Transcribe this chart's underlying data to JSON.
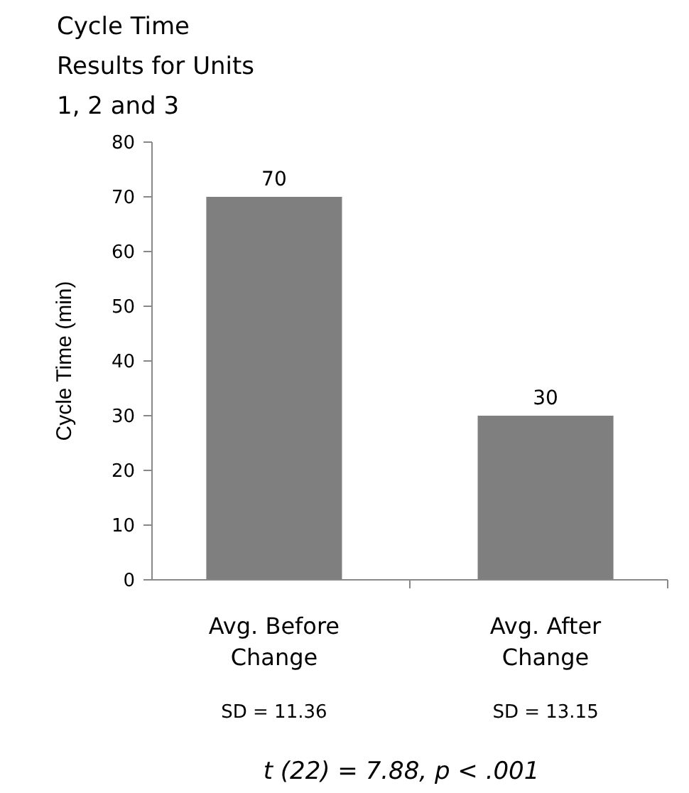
{
  "chart_data": {
    "type": "bar",
    "title": "Cycle Time Results for Units 1, 2 and 3",
    "ylabel": "Cycle Time (min)",
    "categories": [
      "Avg. Before Change",
      "Avg. After Change"
    ],
    "values": [
      70,
      30
    ],
    "color": "#7f7f7f",
    "ylim": [
      0,
      80
    ],
    "yticks": [
      0,
      10,
      20,
      30,
      40,
      50,
      60,
      70,
      80
    ],
    "data_labels": true,
    "annotations": [
      "SD = 11.36",
      "SD = 13.15",
      "t (22) = 7.88, p < .001"
    ]
  }
}
